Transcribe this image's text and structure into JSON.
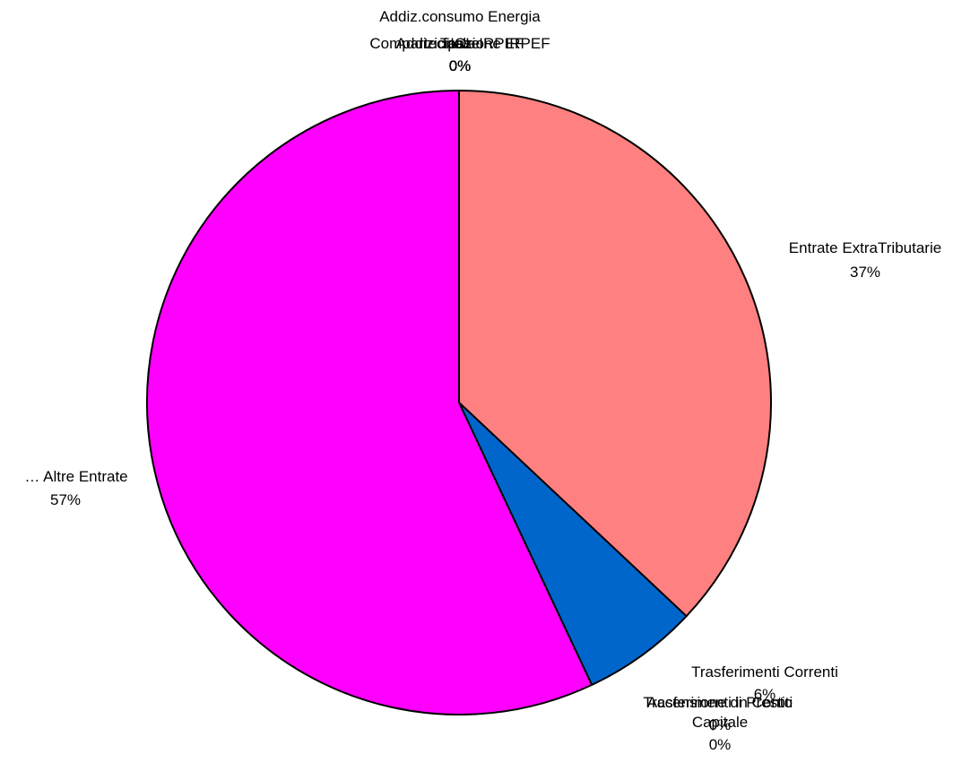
{
  "chart_data": {
    "type": "pie",
    "slices": [
      {
        "label": "Addiz.consumo Energia",
        "percent_label": "0%",
        "value": 0,
        "color": "#000000"
      },
      {
        "label": "Compartecipazione IRPEF",
        "percent_label": "0%",
        "value": 0,
        "color": "#000000"
      },
      {
        "label": "Tasse",
        "percent_label": "0%",
        "value": 0,
        "color": "#000000"
      },
      {
        "label": "Addizionale IRPEF",
        "percent_label": "0%",
        "value": 0,
        "color": "#000000"
      },
      {
        "label": "ICI",
        "percent_label": "0%",
        "value": 0,
        "color": "#000000"
      },
      {
        "label": "Entrate ExtraTributarie",
        "percent_label": "37%",
        "value": 37,
        "color": "#ff8080"
      },
      {
        "label": "Trasferimenti Correnti",
        "percent_label": "6%",
        "value": 6,
        "color": "#0066cc"
      },
      {
        "label": "Trasferimenti in Conto Capitale",
        "percent_label": "0%",
        "value": 0,
        "color": "#000000"
      },
      {
        "label": "Accensione di Prestiti",
        "percent_label": "0%",
        "value": 0,
        "color": "#000000"
      },
      {
        "label": "… Altre Entrate",
        "percent_label": "57%",
        "value": 57,
        "color": "#ff00ff"
      }
    ],
    "start_angle_deg": 0,
    "direction": "clockwise",
    "legend": "none"
  }
}
